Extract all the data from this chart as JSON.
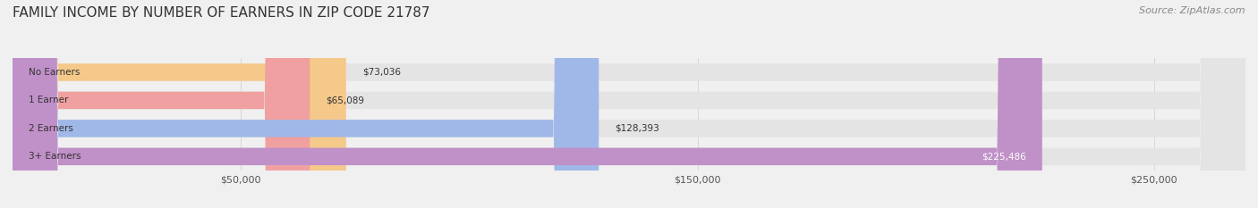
{
  "title": "FAMILY INCOME BY NUMBER OF EARNERS IN ZIP CODE 21787",
  "source": "Source: ZipAtlas.com",
  "categories": [
    "No Earners",
    "1 Earner",
    "2 Earners",
    "3+ Earners"
  ],
  "values": [
    73036,
    65089,
    128393,
    225486
  ],
  "bar_colors": [
    "#f5c98a",
    "#f0a0a0",
    "#a0b8e8",
    "#c090c8"
  ],
  "label_colors": [
    "#555555",
    "#555555",
    "#555555",
    "#ffffff"
  ],
  "value_labels": [
    "$73,036",
    "$65,089",
    "$128,393",
    "$225,486"
  ],
  "xlim": [
    0,
    270000
  ],
  "xticks": [
    50000,
    150000,
    250000
  ],
  "xticklabels": [
    "$50,000",
    "$150,000",
    "$250,000"
  ],
  "background_color": "#f0f0f0",
  "bar_background": "#e4e4e4",
  "title_fontsize": 11,
  "source_fontsize": 8,
  "bar_height": 0.62,
  "figsize": [
    14.06,
    2.33
  ],
  "dpi": 100
}
